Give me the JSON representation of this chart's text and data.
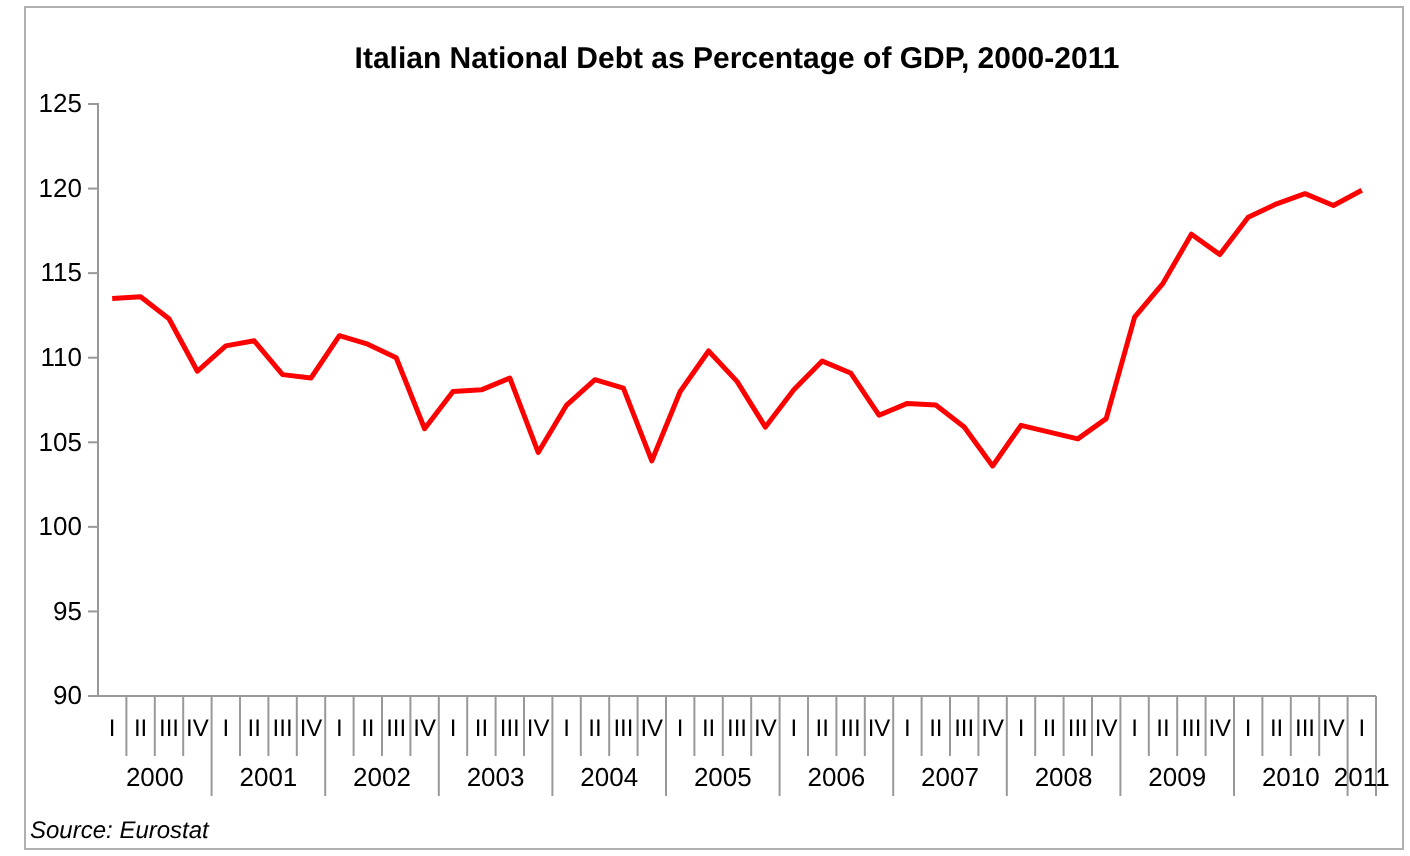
{
  "chart_data": {
    "type": "line",
    "title": "Italian National Debt as Percentage of GDP, 2000-2011",
    "categories": [
      "I",
      "II",
      "III",
      "IV",
      "I",
      "II",
      "III",
      "IV",
      "I",
      "II",
      "III",
      "IV",
      "I",
      "II",
      "III",
      "IV",
      "I",
      "II",
      "III",
      "IV",
      "I",
      "II",
      "III",
      "IV",
      "I",
      "II",
      "III",
      "IV",
      "I",
      "II",
      "III",
      "IV",
      "I",
      "II",
      "III",
      "IV",
      "I",
      "II",
      "III",
      "IV",
      "I",
      "II",
      "III",
      "IV",
      "I"
    ],
    "series": [
      {
        "color": "#ff0000",
        "values": [
          113.5,
          113.6,
          112.3,
          109.2,
          110.7,
          111.0,
          109.0,
          108.8,
          111.3,
          110.8,
          110.0,
          105.8,
          108.0,
          108.1,
          108.8,
          104.4,
          107.2,
          108.7,
          108.2,
          103.9,
          108.0,
          110.4,
          108.6,
          105.9,
          108.1,
          109.8,
          109.1,
          106.6,
          107.3,
          107.2,
          105.9,
          103.6,
          106.0,
          105.6,
          105.2,
          106.4,
          112.4,
          114.4,
          117.3,
          116.1,
          118.3,
          119.1,
          119.7,
          119.0,
          119.9
        ]
      }
    ],
    "ylim": [
      90,
      125
    ],
    "yticks": [
      90,
      95,
      100,
      105,
      110,
      115,
      120,
      125
    ],
    "grid": false,
    "marker": "none",
    "line_style": "solid",
    "annotations": [
      "2000",
      "2001",
      "2002",
      "2003",
      "2004",
      "2005",
      "2006",
      "2007",
      "2008",
      "2009",
      "2010",
      "2011",
      "Source: Eurostat"
    ]
  }
}
